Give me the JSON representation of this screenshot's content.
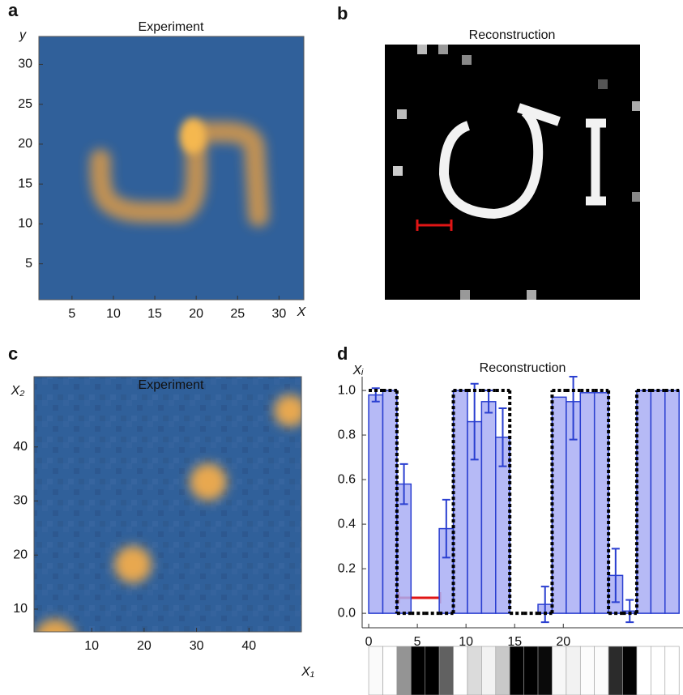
{
  "chart_data": [
    {
      "type": "heatmap",
      "panel": "a",
      "title": "Experiment",
      "x_label": "X",
      "y_label": "y",
      "xlim": [
        1,
        33
      ],
      "ylim": [
        0.5,
        33.5
      ],
      "xticks": [
        5,
        10,
        15,
        20,
        25,
        30
      ],
      "yticks": [
        5,
        10,
        15,
        20,
        25,
        30
      ]
    },
    {
      "type": "image",
      "panel": "b",
      "title": "Reconstruction"
    },
    {
      "type": "heatmap",
      "panel": "c",
      "title": "Experiment",
      "x_label": "X₁",
      "y_label": "X₂",
      "xlim": [
        -1,
        50
      ],
      "ylim": [
        5.8,
        53
      ],
      "xticks": [
        10,
        20,
        30,
        40
      ],
      "yticks": [
        10,
        20,
        30,
        40
      ]
    },
    {
      "type": "bar",
      "panel": "d",
      "title": "Reconstruction",
      "y_label": "Xᵢ",
      "color": "#2a3fd0",
      "x": [
        0.725,
        2.175,
        3.625,
        5.075,
        6.525,
        7.975,
        9.425,
        10.875,
        12.325,
        13.775,
        15.225,
        16.675,
        18.125,
        19.575,
        21.025,
        22.475,
        23.925,
        25.375,
        26.825,
        28.275,
        29.725,
        31.175
      ],
      "values": [
        0.98,
        1,
        0.58,
        0,
        0,
        0.38,
        1,
        0.86,
        0.95,
        0.79,
        0,
        0,
        0.04,
        0.97,
        0.95,
        0.99,
        0.99,
        0.17,
        0.01,
        1,
        1,
        1
      ],
      "errors": [
        0.03,
        null,
        0.09,
        null,
        null,
        0.13,
        null,
        0.17,
        0.05,
        0.13,
        null,
        null,
        0.08,
        null,
        0.17,
        null,
        null,
        0.12,
        0.05,
        null,
        null,
        null
      ],
      "target_values": [
        1,
        1,
        0,
        0,
        0,
        0,
        1,
        1,
        1,
        1,
        0,
        0,
        0,
        1,
        1,
        1,
        1,
        0,
        0,
        1,
        1,
        1
      ],
      "xlim": [
        -0.67,
        32.3
      ],
      "ylim": [
        -0.065,
        1.062
      ],
      "xticks": [
        0,
        5,
        10,
        15,
        20
      ],
      "yticks": [
        {
          "value": 0,
          "label": "0.0"
        },
        0.2,
        0.4,
        0.6,
        0.8,
        {
          "value": 1,
          "label": "1.0"
        }
      ]
    }
  ]
}
